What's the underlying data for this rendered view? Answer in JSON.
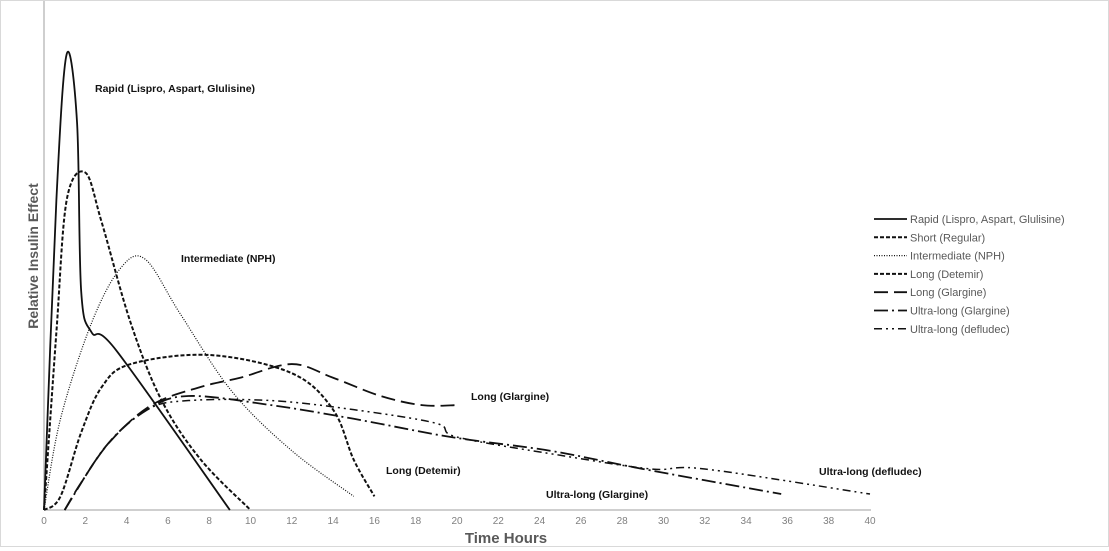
{
  "chart_data": {
    "type": "line",
    "title": "",
    "xlabel": "Time Hours",
    "ylabel": "Relative Insulin Effect",
    "xlim": [
      0,
      40
    ],
    "ylim": [
      0,
      100
    ],
    "x_ticks": [
      0,
      2,
      4,
      6,
      8,
      10,
      12,
      14,
      16,
      18,
      20,
      22,
      24,
      26,
      28,
      30,
      32,
      34,
      36,
      38,
      40
    ],
    "y_ticks": [],
    "grid": false,
    "legend": "right",
    "series": [
      {
        "name": "Rapid (Lispro, Aspart, Glulisine)",
        "style": "solid",
        "label": "Rapid (Lispro, Aspart, Glulisine)",
        "points": [
          [
            0,
            0
          ],
          [
            0.6,
            68
          ],
          [
            1.1,
            100
          ],
          [
            1.6,
            85
          ],
          [
            1.8,
            48
          ],
          [
            2.3,
            39
          ],
          [
            3.5,
            35
          ],
          [
            9,
            0
          ]
        ]
      },
      {
        "name": "Short (Regular)",
        "style": "short-dash",
        "label": "",
        "points": [
          [
            0,
            0
          ],
          [
            0.6,
            39
          ],
          [
            1.1,
            68
          ],
          [
            2,
            74
          ],
          [
            2.8,
            63
          ],
          [
            4.2,
            41
          ],
          [
            5.7,
            24
          ],
          [
            7.6,
            11
          ],
          [
            10,
            0
          ]
        ]
      },
      {
        "name": "Intermediate (NPH)",
        "style": "dotted",
        "label": "Intermediate (NPH)",
        "points": [
          [
            0,
            0
          ],
          [
            0.8,
            20
          ],
          [
            2.3,
            41
          ],
          [
            3.7,
            53
          ],
          [
            4.9,
            55
          ],
          [
            6.6,
            43
          ],
          [
            9.1,
            26
          ],
          [
            12,
            13
          ],
          [
            15,
            3
          ]
        ]
      },
      {
        "name": "Long (Detemir)",
        "style": "short-dash",
        "label": "Long (Detemir)",
        "points": [
          [
            0,
            0
          ],
          [
            0.8,
            3
          ],
          [
            1.8,
            17
          ],
          [
            2.8,
            27
          ],
          [
            4.2,
            32
          ],
          [
            8,
            34
          ],
          [
            12,
            30
          ],
          [
            14,
            22
          ],
          [
            15,
            11
          ],
          [
            16,
            3
          ]
        ]
      },
      {
        "name": "Long (Glargine)",
        "style": "long-dash",
        "label": "Long (Glargine)",
        "points": [
          [
            1,
            0
          ],
          [
            1.8,
            6
          ],
          [
            3.2,
            15
          ],
          [
            5.2,
            23
          ],
          [
            7.6,
            27
          ],
          [
            9.5,
            29
          ],
          [
            12,
            32
          ],
          [
            14,
            29
          ],
          [
            16.3,
            25
          ],
          [
            18.3,
            23
          ],
          [
            20,
            23
          ]
        ]
      },
      {
        "name": "Ultra-long (Glargine)",
        "style": "long-dash-dot",
        "label": "Ultra-long (Glargine)",
        "points": [
          [
            1,
            0
          ],
          [
            3,
            14
          ],
          [
            5,
            22
          ],
          [
            7,
            25
          ],
          [
            11,
            23
          ],
          [
            15,
            20
          ],
          [
            19.7,
            16
          ],
          [
            24.5,
            13
          ],
          [
            29,
            9
          ],
          [
            35.7,
            3.5
          ]
        ]
      },
      {
        "name": "Ultra-long (defludec)",
        "style": "dash-dot-dot",
        "label": "Ultra-long (defludec)",
        "points": [
          [
            1,
            0
          ],
          [
            3,
            14
          ],
          [
            5,
            22
          ],
          [
            7,
            24
          ],
          [
            11,
            24
          ],
          [
            15,
            22
          ],
          [
            19,
            19
          ],
          [
            20,
            16
          ],
          [
            25,
            12
          ],
          [
            29.4,
            9
          ],
          [
            32,
            9
          ],
          [
            40,
            3.5
          ]
        ]
      }
    ]
  }
}
